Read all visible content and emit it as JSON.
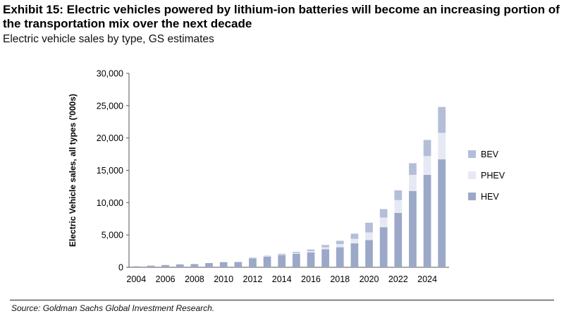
{
  "header": {
    "title": "Exhibit 15: Electric vehicles powered by lithium-ion batteries will become an increasing portion of the transportation mix over the next decade",
    "subtitle": "Electric vehicle sales by type, GS estimates"
  },
  "footer": {
    "source": "Source: Goldman Sachs Global Investment Research."
  },
  "colors": {
    "BEV": "#b4bed9",
    "PHEV": "#e6e9f3",
    "HEV": "#9ba8c8"
  },
  "chart_data": {
    "type": "bar",
    "stacked": true,
    "title": "",
    "xlabel": "",
    "ylabel": "Electric Vehicle sales, all types ('000s)",
    "ylim": [
      0,
      30000
    ],
    "yticks": [
      "0",
      "5,000",
      "10,000",
      "15,000",
      "20,000",
      "25,000",
      "30,000"
    ],
    "categories": [
      2004,
      2005,
      2006,
      2007,
      2008,
      2009,
      2010,
      2011,
      2012,
      2013,
      2014,
      2015,
      2016,
      2017,
      2018,
      2019,
      2020,
      2021,
      2022,
      2023,
      2024,
      2025
    ],
    "xtick_labels": [
      "2004",
      "2006",
      "2008",
      "2010",
      "2012",
      "2014",
      "2016",
      "2018",
      "2020",
      "2022",
      "2024"
    ],
    "legend_position": "right",
    "grid": false,
    "series": [
      {
        "name": "HEV",
        "values": [
          150,
          250,
          350,
          450,
          500,
          650,
          800,
          800,
          1400,
          1650,
          1900,
          2100,
          2300,
          2800,
          3100,
          3700,
          4200,
          6200,
          8400,
          11800,
          14300,
          16700
        ]
      },
      {
        "name": "PHEV",
        "values": [
          0,
          0,
          0,
          0,
          0,
          0,
          0,
          0,
          50,
          80,
          100,
          150,
          200,
          300,
          500,
          700,
          1200,
          1500,
          2000,
          2500,
          2900,
          4100
        ]
      },
      {
        "name": "BEV",
        "values": [
          0,
          0,
          0,
          0,
          0,
          0,
          0,
          30,
          50,
          70,
          100,
          150,
          250,
          350,
          500,
          800,
          1500,
          1300,
          1500,
          1800,
          2500,
          4000
        ]
      }
    ],
    "legend_order": [
      "BEV",
      "PHEV",
      "HEV"
    ]
  }
}
